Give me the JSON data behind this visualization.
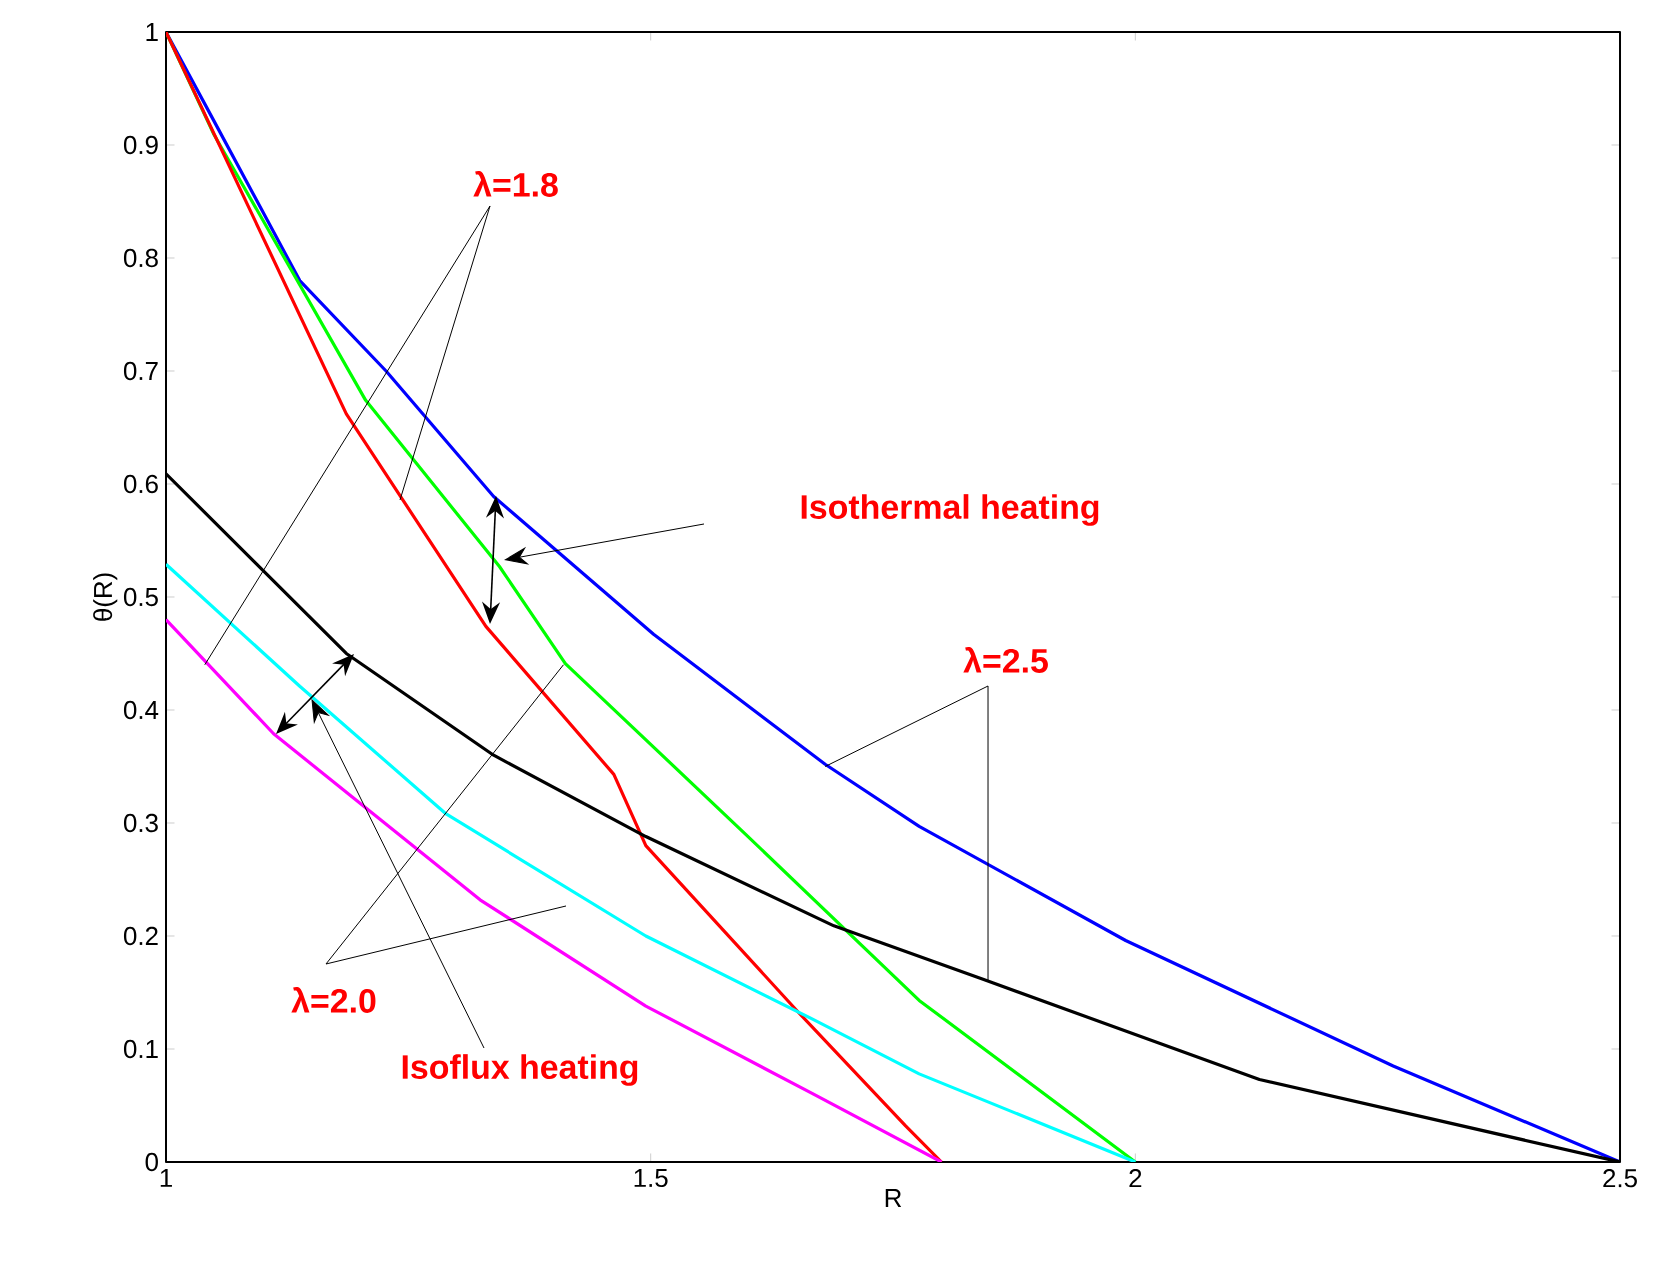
{
  "chart_data": {
    "type": "line",
    "xlabel": "R",
    "ylabel": "θ(R)",
    "xlim": [
      1,
      2.5
    ],
    "ylim": [
      0,
      1
    ],
    "xticks": [
      1,
      1.5,
      2,
      2.5
    ],
    "yticks": [
      0,
      0.1,
      0.2,
      0.3,
      0.4,
      0.5,
      0.6,
      0.7,
      0.8,
      0.9,
      1
    ],
    "grid": false,
    "legend": false,
    "line_style": "solid",
    "marker": "none",
    "series": [
      {
        "color": "#0000ff",
        "x": [
          1,
          1.049,
          1.138,
          1.227,
          1.338,
          1.503,
          1.68,
          1.777,
          1.99,
          2.266,
          2.5
        ],
        "values": [
          1,
          0.922,
          0.78,
          0.7,
          0.589,
          0.467,
          0.352,
          0.297,
          0.196,
          0.085,
          0
        ]
      },
      {
        "color": "#00ff00",
        "x": [
          1,
          1.049,
          1.206,
          1.344,
          1.412,
          1.598,
          1.777,
          2
        ],
        "values": [
          1,
          0.91,
          0.674,
          0.527,
          0.441,
          0.29,
          0.143,
          0
        ]
      },
      {
        "color": "#ff0000",
        "x": [
          1,
          1.082,
          1.186,
          1.33,
          1.462,
          1.495,
          1.654,
          1.763,
          1.8
        ],
        "values": [
          1,
          0.851,
          0.662,
          0.474,
          0.343,
          0.28,
          0.131,
          0.032,
          0
        ]
      },
      {
        "color": "#000000",
        "x": [
          1,
          1.186,
          1.338,
          1.495,
          1.689,
          1.845,
          2.128,
          2.5
        ],
        "values": [
          0.609,
          0.45,
          0.36,
          0.288,
          0.209,
          0.161,
          0.073,
          0
        ]
      },
      {
        "color": "#00ffff",
        "x": [
          1,
          1.138,
          1.289,
          1.495,
          1.668,
          1.777,
          2
        ],
        "values": [
          0.529,
          0.421,
          0.308,
          0.2,
          0.126,
          0.078,
          0
        ]
      },
      {
        "color": "#ff00ff",
        "x": [
          1,
          1.111,
          1.324,
          1.495,
          1.668,
          1.8
        ],
        "values": [
          0.48,
          0.379,
          0.232,
          0.138,
          0.06,
          0
        ]
      }
    ],
    "annotations": [
      {
        "text": "λ=1.8",
        "x": 1.04,
        "y": 0.44
      },
      "Isothermal heating",
      {
        "text": "λ=2.5",
        "x": 1.68,
        "y": 0.35
      },
      {
        "text": "λ=2.0",
        "x": 1.41,
        "y": 0.44
      },
      {
        "text": "Isoflux heating",
        "x": 1.15,
        "y": 0.41
      }
    ]
  }
}
